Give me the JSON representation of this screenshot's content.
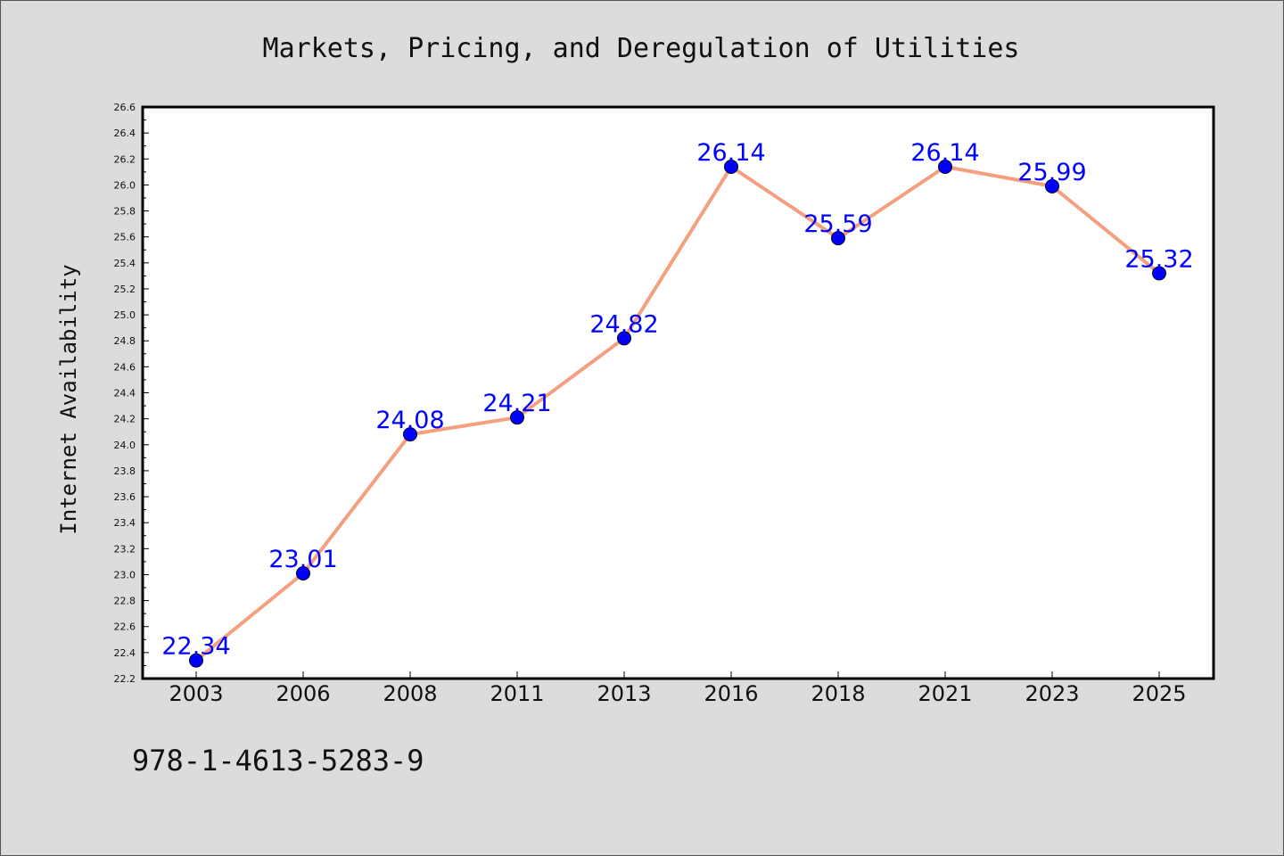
{
  "footer": {
    "code": "978-1-4613-5283-9"
  },
  "chart_data": {
    "type": "line",
    "title": "Markets, Pricing, and Deregulation of Utilities",
    "xlabel": "",
    "ylabel": "Internet Availability",
    "categories": [
      "2003",
      "2006",
      "2008",
      "2011",
      "2013",
      "2016",
      "2018",
      "2021",
      "2023",
      "2025"
    ],
    "series": [
      {
        "values": [
          22.34,
          23.01,
          24.08,
          24.21,
          24.82,
          26.14,
          25.59,
          26.14,
          25.99,
          25.32
        ],
        "labels": [
          "22.34",
          "23.01",
          "24.08",
          "24.21",
          "24.82",
          "26.14",
          "25.59",
          "26.14",
          "25.99",
          "25.32"
        ],
        "line_color": "#f4a07f",
        "marker_color": "#0000ff",
        "label_color": "#0000ff"
      }
    ],
    "ylim": [
      22.2,
      26.6
    ],
    "yticks": [
      "22.2",
      "22.4",
      "22.6",
      "22.8",
      "23.0",
      "23.2",
      "23.4",
      "23.6",
      "23.8",
      "24.0",
      "24.2",
      "24.4",
      "24.6",
      "24.8",
      "25.0",
      "25.2",
      "25.4",
      "25.6",
      "25.8",
      "26.0",
      "26.2",
      "26.4",
      "26.6"
    ],
    "grid": false,
    "legend": "none",
    "background": "#dcdcdc",
    "plot_background": "#ffffff"
  }
}
